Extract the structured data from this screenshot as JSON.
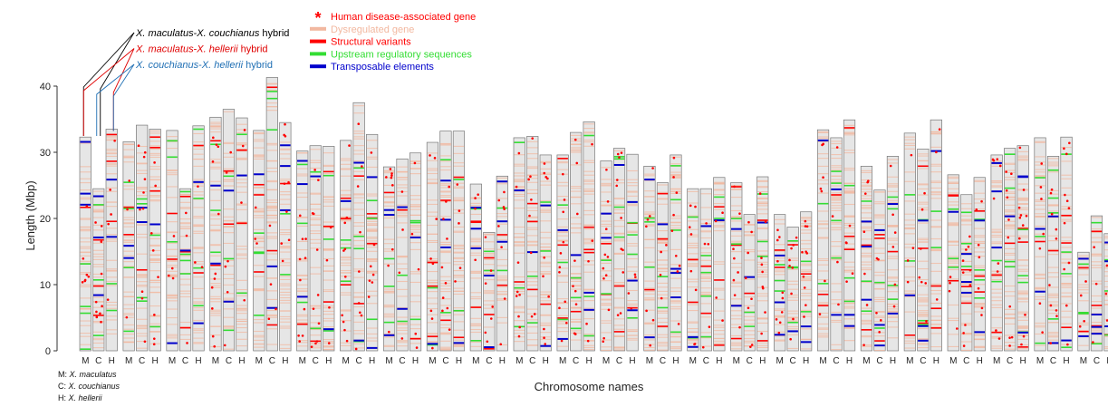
{
  "chart_data": {
    "type": "bar",
    "ylabel": "Length (Mbp)",
    "xlabel": "Chromosome names",
    "ylim": [
      0,
      40
    ],
    "y_ticks": [
      "0",
      "10",
      "20",
      "30",
      "40"
    ],
    "column_labels": [
      "M",
      "C",
      "H"
    ],
    "legend": [
      {
        "label": "Human disease-associated gene",
        "color": "#ff0000",
        "marker": "asterisk"
      },
      {
        "label": "Dysregulated gene",
        "color": "#f2b8a0",
        "marker": "bar"
      },
      {
        "label": "Structural variants",
        "color": "#ff0000",
        "marker": "bar"
      },
      {
        "label": "Upstream regulatory sequences",
        "color": "#33dd33",
        "marker": "bar"
      },
      {
        "label": "Transposable elements",
        "color": "#0000cc",
        "marker": "bar"
      }
    ],
    "hybrids": [
      {
        "p1": "X. maculatus",
        "sep": "-",
        "p2": "X. couchianus",
        "suffix": " hybrid",
        "color": "#000000"
      },
      {
        "p1": "X. maculatus",
        "sep": "-",
        "p2": "X. hellerii",
        "suffix": " hybrid",
        "color": "#e00000"
      },
      {
        "p1": "X. couchianus",
        "sep": "-",
        "p2": "X. hellerii",
        "suffix": " hybrid",
        "color": "#1f6fb4"
      }
    ],
    "species_key": [
      {
        "code": "M: ",
        "name": "X. maculatus"
      },
      {
        "code": "C: ",
        "name": "X. couchianus"
      },
      {
        "code": "H: ",
        "name": "X. hellerii"
      }
    ],
    "series": [
      {
        "name": "M",
        "values": [
          32.3,
          31.6,
          33.3,
          35.3,
          33.3,
          30.2,
          31.8,
          27.8,
          31.5,
          25.2,
          32.2,
          29.6,
          28.7,
          27.9,
          24.5,
          25.4,
          20.6,
          33.4,
          27.9,
          32.9,
          26.6,
          29.6,
          32.2,
          14.9
        ]
      },
      {
        "name": "C",
        "values": [
          24.5,
          34.1,
          24.5,
          36.5,
          41.3,
          31.0,
          37.5,
          29.0,
          33.2,
          17.9,
          32.4,
          33.0,
          30.6,
          25.4,
          24.5,
          20.6,
          18.7,
          32.2,
          24.3,
          30.5,
          23.6,
          30.6,
          29.4,
          20.4
        ]
      },
      {
        "name": "H",
        "values": [
          33.5,
          33.5,
          34.0,
          35.2,
          34.5,
          30.9,
          32.7,
          29.9,
          33.2,
          26.4,
          29.6,
          34.6,
          29.7,
          29.6,
          26.2,
          26.3,
          21.0,
          34.9,
          29.4,
          34.9,
          26.2,
          31.0,
          32.3,
          17.7
        ]
      }
    ]
  }
}
